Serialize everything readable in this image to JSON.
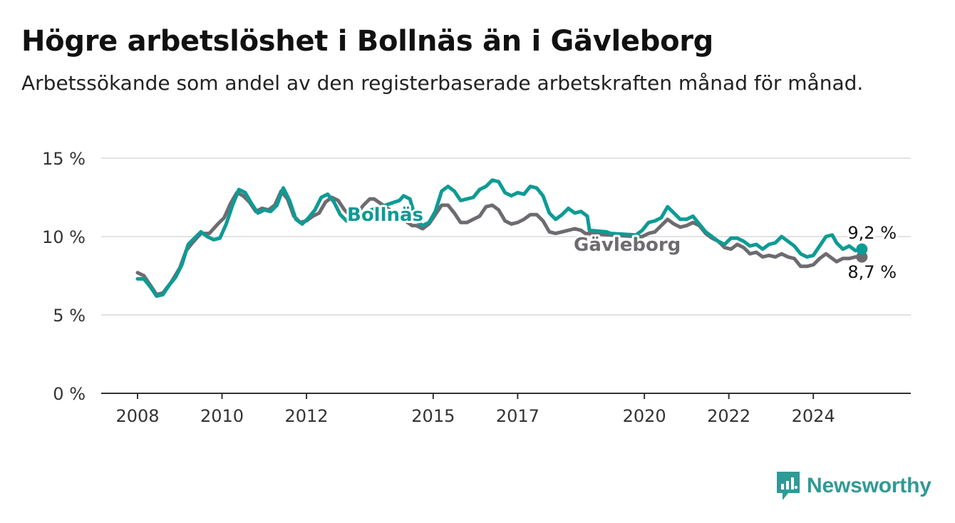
{
  "header": {
    "title": "Högre arbetslöshet i Bollnäs än i Gävleborg",
    "subtitle": "Arbetssökande som andel av den registerbaserade arbetskraften månad för månad."
  },
  "brand": {
    "name": "Newsworthy",
    "color": "#2f9a96",
    "icon": "newsworthy-logo-icon"
  },
  "colors": {
    "bollnas": "#0d9b95",
    "gavleborg": "#6e6b70",
    "grid": "#d9d9d9",
    "axis": "#333333"
  },
  "chart_data": {
    "type": "line",
    "title": "Högre arbetslöshet i Bollnäs än i Gävleborg",
    "subtitle": "Arbetssökande som andel av den registerbaserade arbetskraften månad för månad.",
    "ylim": [
      0,
      15
    ],
    "yticks": [
      0,
      5,
      10,
      15
    ],
    "ytick_labels": [
      "0 %",
      "5 %",
      "10 %",
      "15 %"
    ],
    "xlim": [
      2008.0,
      2025.6
    ],
    "xticks": [
      2008,
      2010,
      2012,
      2015,
      2017,
      2020,
      2022,
      2024
    ],
    "xtick_labels": [
      "2008",
      "2010",
      "2012",
      "2015",
      "2017",
      "2020",
      "2022",
      "2024"
    ],
    "grid": true,
    "legend": "inline labels",
    "series": [
      {
        "name": "Gävleborg",
        "end_label": "8,7 %",
        "points": [
          [
            2008.0,
            7.7
          ],
          [
            2008.15,
            7.5
          ],
          [
            2008.3,
            6.9
          ],
          [
            2008.45,
            6.3
          ],
          [
            2008.6,
            6.4
          ],
          [
            2008.8,
            7.1
          ],
          [
            2009.0,
            8.0
          ],
          [
            2009.15,
            9.1
          ],
          [
            2009.3,
            9.6
          ],
          [
            2009.5,
            10.2
          ],
          [
            2009.7,
            10.2
          ],
          [
            2009.9,
            10.8
          ],
          [
            2010.05,
            11.2
          ],
          [
            2010.2,
            12.1
          ],
          [
            2010.35,
            12.8
          ],
          [
            2010.5,
            12.6
          ],
          [
            2010.65,
            12.2
          ],
          [
            2010.8,
            11.6
          ],
          [
            2010.95,
            11.8
          ],
          [
            2011.1,
            11.7
          ],
          [
            2011.25,
            12.0
          ],
          [
            2011.4,
            12.9
          ],
          [
            2011.55,
            12.4
          ],
          [
            2011.7,
            11.3
          ],
          [
            2011.85,
            10.9
          ],
          [
            2012.0,
            11.0
          ],
          [
            2012.15,
            11.3
          ],
          [
            2012.3,
            11.5
          ],
          [
            2012.45,
            12.2
          ],
          [
            2012.6,
            12.5
          ],
          [
            2012.75,
            12.3
          ],
          [
            2012.9,
            11.7
          ],
          [
            2013.05,
            11.3
          ],
          [
            2013.2,
            11.5
          ],
          [
            2013.35,
            12.0
          ],
          [
            2013.5,
            12.4
          ],
          [
            2013.6,
            12.4
          ],
          [
            2014.5,
            10.7
          ],
          [
            2014.6,
            10.7
          ],
          [
            2014.75,
            10.5
          ],
          [
            2014.9,
            10.8
          ],
          [
            2015.05,
            11.4
          ],
          [
            2015.2,
            12.0
          ],
          [
            2015.35,
            12.0
          ],
          [
            2015.5,
            11.5
          ],
          [
            2015.65,
            10.9
          ],
          [
            2015.8,
            10.9
          ],
          [
            2015.95,
            11.1
          ],
          [
            2016.1,
            11.3
          ],
          [
            2016.25,
            11.9
          ],
          [
            2016.4,
            12.0
          ],
          [
            2016.55,
            11.7
          ],
          [
            2016.7,
            11.0
          ],
          [
            2016.85,
            10.8
          ],
          [
            2017.0,
            10.9
          ],
          [
            2017.15,
            11.1
          ],
          [
            2017.3,
            11.4
          ],
          [
            2017.45,
            11.4
          ],
          [
            2017.6,
            11.0
          ],
          [
            2017.75,
            10.3
          ],
          [
            2017.9,
            10.2
          ],
          [
            2018.05,
            10.3
          ],
          [
            2018.2,
            10.4
          ],
          [
            2018.35,
            10.5
          ],
          [
            2018.5,
            10.4
          ],
          [
            2018.6,
            10.2
          ],
          [
            2019.8,
            10.0
          ],
          [
            2019.95,
            10.0
          ],
          [
            2020.1,
            10.2
          ],
          [
            2020.25,
            10.3
          ],
          [
            2020.4,
            10.7
          ],
          [
            2020.55,
            11.1
          ],
          [
            2020.7,
            10.8
          ],
          [
            2020.85,
            10.6
          ],
          [
            2021.0,
            10.7
          ],
          [
            2021.15,
            10.9
          ],
          [
            2021.3,
            10.7
          ],
          [
            2021.45,
            10.2
          ],
          [
            2021.6,
            9.9
          ],
          [
            2021.75,
            9.7
          ],
          [
            2021.9,
            9.3
          ],
          [
            2022.05,
            9.2
          ],
          [
            2022.2,
            9.5
          ],
          [
            2022.35,
            9.3
          ],
          [
            2022.5,
            8.9
          ],
          [
            2022.65,
            9.0
          ],
          [
            2022.8,
            8.7
          ],
          [
            2022.95,
            8.8
          ],
          [
            2023.1,
            8.7
          ],
          [
            2023.25,
            8.9
          ],
          [
            2023.4,
            8.7
          ],
          [
            2023.55,
            8.6
          ],
          [
            2023.7,
            8.1
          ],
          [
            2023.85,
            8.1
          ],
          [
            2024.0,
            8.2
          ],
          [
            2024.15,
            8.6
          ],
          [
            2024.3,
            8.9
          ],
          [
            2024.45,
            8.6
          ],
          [
            2024.55,
            8.4
          ],
          [
            2024.7,
            8.6
          ],
          [
            2024.85,
            8.6
          ],
          [
            2025.0,
            8.7
          ],
          [
            2025.15,
            8.7
          ]
        ]
      },
      {
        "name": "Bollnäs",
        "end_label": "9,2 %",
        "points": [
          [
            2008.0,
            7.3
          ],
          [
            2008.15,
            7.3
          ],
          [
            2008.3,
            6.8
          ],
          [
            2008.45,
            6.2
          ],
          [
            2008.6,
            6.3
          ],
          [
            2008.75,
            6.9
          ],
          [
            2008.9,
            7.4
          ],
          [
            2009.05,
            8.2
          ],
          [
            2009.2,
            9.5
          ],
          [
            2009.35,
            9.9
          ],
          [
            2009.5,
            10.3
          ],
          [
            2009.65,
            10.0
          ],
          [
            2009.8,
            9.8
          ],
          [
            2009.95,
            9.9
          ],
          [
            2010.1,
            10.8
          ],
          [
            2010.25,
            12.0
          ],
          [
            2010.4,
            13.0
          ],
          [
            2010.55,
            12.8
          ],
          [
            2010.7,
            12.1
          ],
          [
            2010.85,
            11.5
          ],
          [
            2011.0,
            11.7
          ],
          [
            2011.15,
            11.6
          ],
          [
            2011.3,
            12.0
          ],
          [
            2011.45,
            13.1
          ],
          [
            2011.6,
            12.3
          ],
          [
            2011.75,
            11.1
          ],
          [
            2011.9,
            10.8
          ],
          [
            2012.05,
            11.2
          ],
          [
            2012.2,
            11.7
          ],
          [
            2012.35,
            12.5
          ],
          [
            2012.5,
            12.7
          ],
          [
            2012.65,
            12.2
          ],
          [
            2012.8,
            11.4
          ],
          [
            2012.95,
            11.0
          ],
          [
            2013.1,
            11.2
          ],
          [
            2013.2,
            11.4
          ],
          [
            2014.2,
            12.3
          ],
          [
            2014.3,
            12.6
          ],
          [
            2014.45,
            12.4
          ],
          [
            2014.6,
            11.0
          ],
          [
            2014.75,
            10.7
          ],
          [
            2014.9,
            10.9
          ],
          [
            2015.05,
            11.6
          ],
          [
            2015.2,
            12.9
          ],
          [
            2015.35,
            13.2
          ],
          [
            2015.5,
            12.9
          ],
          [
            2015.65,
            12.3
          ],
          [
            2015.8,
            12.4
          ],
          [
            2015.95,
            12.5
          ],
          [
            2016.1,
            13.0
          ],
          [
            2016.25,
            13.2
          ],
          [
            2016.4,
            13.6
          ],
          [
            2016.55,
            13.5
          ],
          [
            2016.7,
            12.8
          ],
          [
            2016.85,
            12.6
          ],
          [
            2017.0,
            12.8
          ],
          [
            2017.15,
            12.7
          ],
          [
            2017.3,
            13.2
          ],
          [
            2017.45,
            13.1
          ],
          [
            2017.6,
            12.6
          ],
          [
            2017.75,
            11.5
          ],
          [
            2017.9,
            11.1
          ],
          [
            2018.05,
            11.4
          ],
          [
            2018.2,
            11.8
          ],
          [
            2018.35,
            11.5
          ],
          [
            2018.5,
            11.6
          ],
          [
            2018.65,
            11.3
          ],
          [
            2018.7,
            10.4
          ],
          [
            2019.1,
            10.3
          ],
          [
            2019.2,
            10.2
          ],
          [
            2019.8,
            10.1
          ],
          [
            2019.95,
            10.4
          ],
          [
            2020.1,
            10.9
          ],
          [
            2020.25,
            11.0
          ],
          [
            2020.4,
            11.2
          ],
          [
            2020.55,
            11.9
          ],
          [
            2020.7,
            11.5
          ],
          [
            2020.85,
            11.1
          ],
          [
            2021.0,
            11.1
          ],
          [
            2021.15,
            11.3
          ],
          [
            2021.3,
            10.8
          ],
          [
            2021.45,
            10.3
          ],
          [
            2021.6,
            10.0
          ],
          [
            2021.75,
            9.7
          ],
          [
            2021.9,
            9.5
          ],
          [
            2022.05,
            9.9
          ],
          [
            2022.2,
            9.9
          ],
          [
            2022.35,
            9.7
          ],
          [
            2022.5,
            9.4
          ],
          [
            2022.65,
            9.5
          ],
          [
            2022.8,
            9.2
          ],
          [
            2022.95,
            9.5
          ],
          [
            2023.1,
            9.6
          ],
          [
            2023.25,
            10.0
          ],
          [
            2023.4,
            9.7
          ],
          [
            2023.55,
            9.4
          ],
          [
            2023.7,
            8.9
          ],
          [
            2023.85,
            8.7
          ],
          [
            2024.0,
            8.8
          ],
          [
            2024.15,
            9.4
          ],
          [
            2024.3,
            10.0
          ],
          [
            2024.45,
            10.1
          ],
          [
            2024.55,
            9.6
          ],
          [
            2024.7,
            9.2
          ],
          [
            2024.85,
            9.4
          ],
          [
            2025.0,
            9.1
          ],
          [
            2025.15,
            9.2
          ]
        ]
      }
    ]
  }
}
